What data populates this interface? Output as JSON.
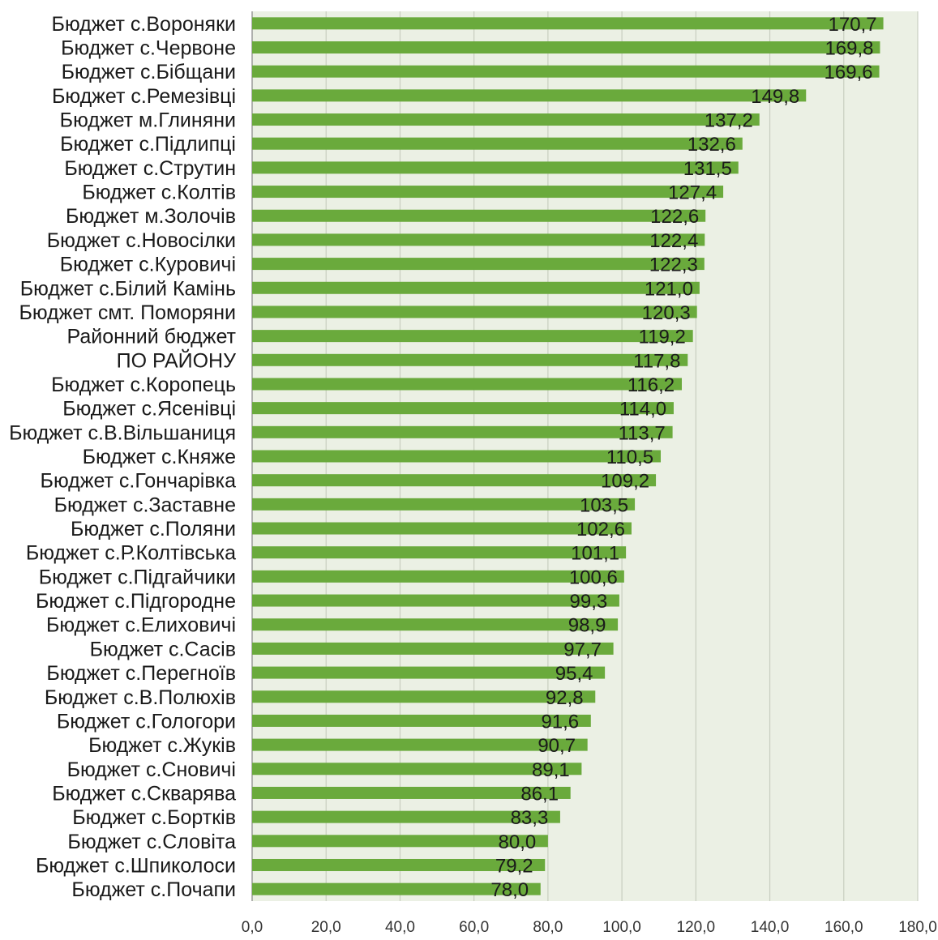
{
  "chart_data": {
    "type": "bar",
    "orientation": "horizontal",
    "categories": [
      "Бюджет с.Вороняки",
      "Бюджет с.Червоне",
      "Бюджет с.Бібщани",
      "Бюджет с.Ремезівці",
      "Бюджет м.Глиняни",
      "Бюджет с.Підлипці",
      "Бюджет с.Струтин",
      "Бюджет с.Колтів",
      "Бюджет м.Золочів",
      "Бюджет с.Новосілки",
      "Бюджет с.Куровичі",
      "Бюджет с.Білий Камінь",
      "Бюджет смт. Поморяни",
      "Районний бюджет",
      "ПО РАЙОНУ",
      "Бюджет с.Коропець",
      "Бюджет с.Ясенівці",
      "Бюджет с.В.Вільшаниця",
      "Бюджет с.Княже",
      "Бюджет с.Гончарівка",
      "Бюджет с.Заставне",
      "Бюджет с.Поляни",
      "Бюджет с.Р.Колтівська",
      "Бюджет с.Підгайчики",
      "Бюджет с.Підгородне",
      "Бюджет с.Елиховичі",
      "Бюджет с.Сасів",
      "Бюджет с.Перегноїв",
      "Бюджет с.В.Полюхів",
      "Бюджет с.Гологори",
      "Бюджет с.Жуків",
      "Бюджет с.Сновичі",
      "Бюджет с.Скварява",
      "Бюджет с.Бортків",
      "Бюджет с.Словіта",
      "Бюджет с.Шпиколоси",
      "Бюджет с.Почапи"
    ],
    "values": [
      170.7,
      169.8,
      169.6,
      149.8,
      137.2,
      132.6,
      131.5,
      127.4,
      122.6,
      122.4,
      122.3,
      121.0,
      120.3,
      119.2,
      117.8,
      116.2,
      114.0,
      113.7,
      110.5,
      109.2,
      103.5,
      102.6,
      101.1,
      100.6,
      99.3,
      98.9,
      97.7,
      95.4,
      92.8,
      91.6,
      90.7,
      89.1,
      86.1,
      83.3,
      80.0,
      79.2,
      78.0
    ],
    "value_labels": [
      "170,7",
      "169,8",
      "169,6",
      "149,8",
      "137,2",
      "132,6",
      "131,5",
      "127,4",
      "122,6",
      "122,4",
      "122,3",
      "121,0",
      "120,3",
      "119,2",
      "117,8",
      "116,2",
      "114,0",
      "113,7",
      "110,5",
      "109,2",
      "103,5",
      "102,6",
      "101,1",
      "100,6",
      "99,3",
      "98,9",
      "97,7",
      "95,4",
      "92,8",
      "91,6",
      "90,7",
      "89,1",
      "86,1",
      "83,3",
      "80,0",
      "79,2",
      "78,0"
    ],
    "xlim": [
      0,
      180
    ],
    "x_ticks": [
      0,
      20,
      40,
      60,
      80,
      100,
      120,
      140,
      160,
      180
    ],
    "x_tick_labels": [
      "0,0",
      "20,0",
      "40,0",
      "60,0",
      "80,0",
      "100,0",
      "120,0",
      "140,0",
      "160,0",
      "180,0"
    ],
    "grid": true,
    "legend": "none",
    "bar_color": "#6aaa3c",
    "plot_background": "#ebf0e4",
    "title": "",
    "xlabel": "",
    "ylabel": ""
  }
}
